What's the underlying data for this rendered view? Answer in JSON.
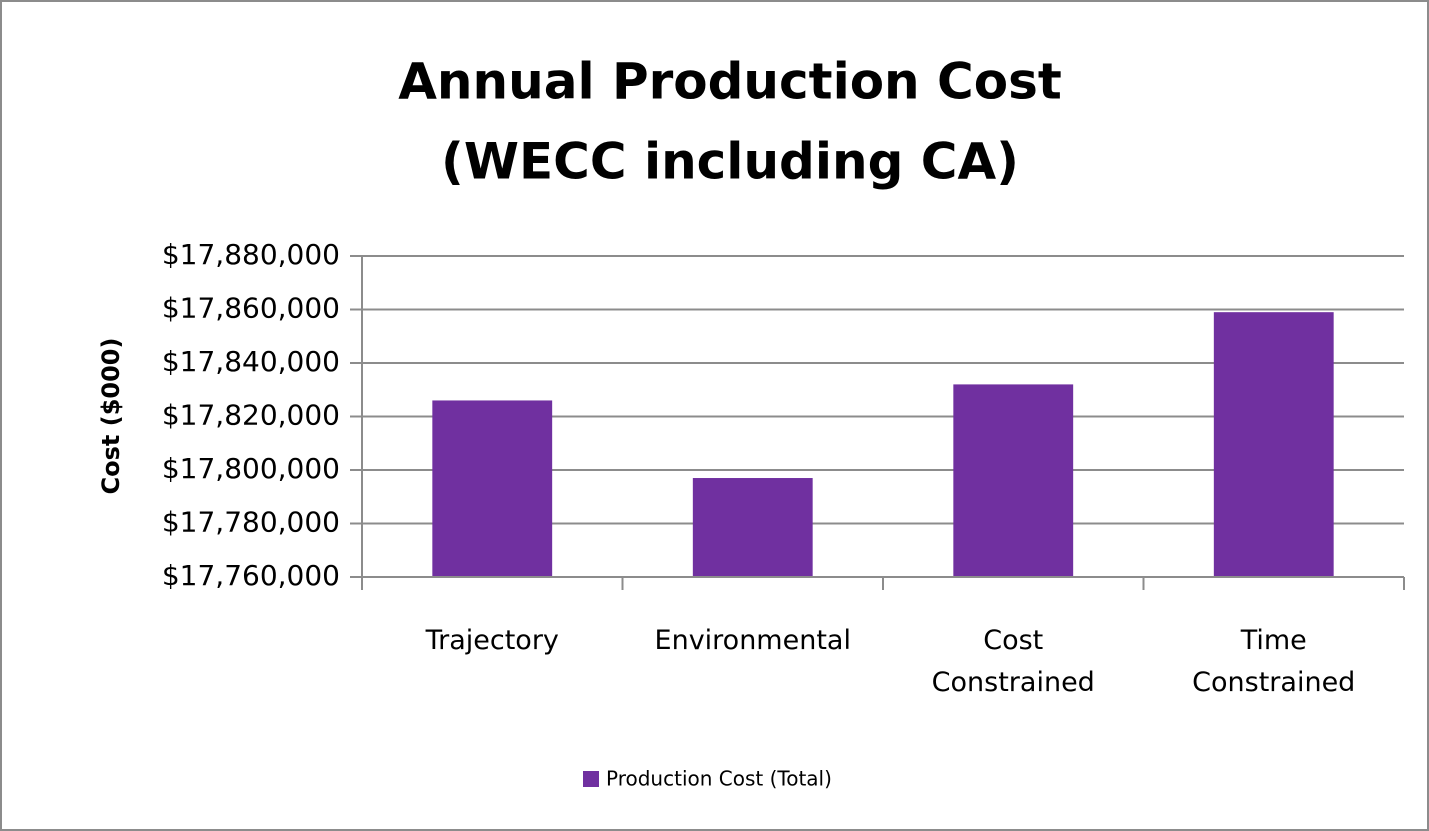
{
  "chart_data": {
    "type": "bar",
    "title": "Annual Production Cost",
    "subtitle": "(WECC including CA)",
    "y_label": "Cost ($000)",
    "categories": [
      "Trajectory",
      "Environmental",
      "Cost Constrained",
      "Time Constrained"
    ],
    "series": [
      {
        "name": "Production Cost (Total)",
        "color": "#7030a0",
        "values": [
          17826000,
          17797000,
          17832000,
          17859000
        ]
      }
    ],
    "ylim": [
      17760000,
      17880000
    ],
    "yticks": [
      {
        "value": 17760000,
        "label": "$17,760,000"
      },
      {
        "value": 17780000,
        "label": "$17,780,000"
      },
      {
        "value": 17800000,
        "label": "$17,800,000"
      },
      {
        "value": 17820000,
        "label": "$17,820,000"
      },
      {
        "value": 17840000,
        "label": "$17,840,000"
      },
      {
        "value": 17860000,
        "label": "$17,860,000"
      },
      {
        "value": 17880000,
        "label": "$17,880,000"
      }
    ],
    "grid": true,
    "legend": "bottom"
  }
}
